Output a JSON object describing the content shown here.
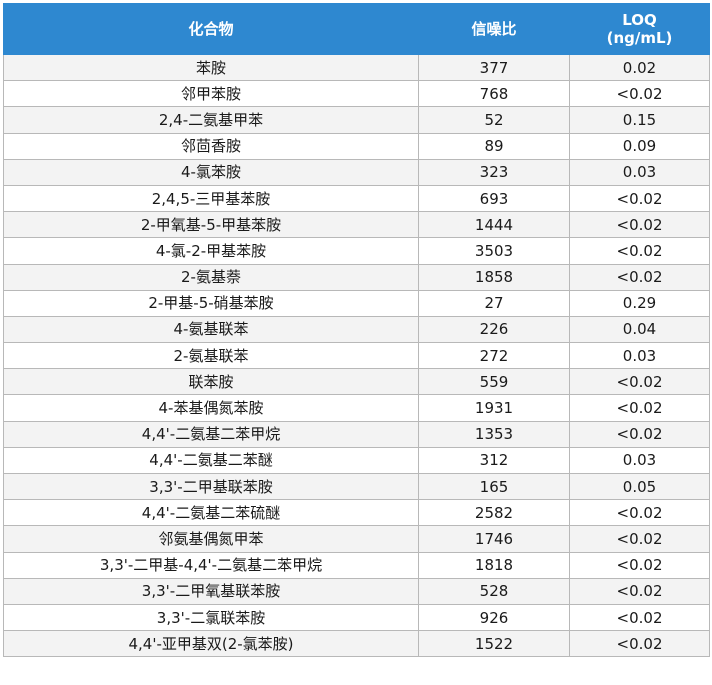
{
  "table": {
    "headers": {
      "compound": "化合物",
      "snr": "信噪比",
      "loq_line1": "LOQ",
      "loq_line2": "(ng/mL)"
    },
    "rows": [
      {
        "compound": "苯胺",
        "snr": "377",
        "loq": "0.02"
      },
      {
        "compound": "邻甲苯胺",
        "snr": "768",
        "loq": "<0.02"
      },
      {
        "compound": "2,4-二氨基甲苯",
        "snr": "52",
        "loq": "0.15"
      },
      {
        "compound": "邻茴香胺",
        "snr": "89",
        "loq": "0.09"
      },
      {
        "compound": "4-氯苯胺",
        "snr": "323",
        "loq": "0.03"
      },
      {
        "compound": "2,4,5-三甲基苯胺",
        "snr": "693",
        "loq": "<0.02"
      },
      {
        "compound": "2-甲氧基-5-甲基苯胺",
        "snr": "1444",
        "loq": "<0.02"
      },
      {
        "compound": "4-氯-2-甲基苯胺",
        "snr": "3503",
        "loq": "<0.02"
      },
      {
        "compound": "2-氨基萘",
        "snr": "1858",
        "loq": "<0.02"
      },
      {
        "compound": "2-甲基-5-硝基苯胺",
        "snr": "27",
        "loq": "0.29"
      },
      {
        "compound": "4-氨基联苯",
        "snr": "226",
        "loq": "0.04"
      },
      {
        "compound": "2-氨基联苯",
        "snr": "272",
        "loq": "0.03"
      },
      {
        "compound": "联苯胺",
        "snr": "559",
        "loq": "<0.02"
      },
      {
        "compound": "4-苯基偶氮苯胺",
        "snr": "1931",
        "loq": "<0.02"
      },
      {
        "compound": "4,4'-二氨基二苯甲烷",
        "snr": "1353",
        "loq": "<0.02"
      },
      {
        "compound": "4,4'-二氨基二苯醚",
        "snr": "312",
        "loq": "0.03"
      },
      {
        "compound": "3,3'-二甲基联苯胺",
        "snr": "165",
        "loq": "0.05"
      },
      {
        "compound": "4,4'-二氨基二苯硫醚",
        "snr": "2582",
        "loq": "<0.02"
      },
      {
        "compound": "邻氨基偶氮甲苯",
        "snr": "1746",
        "loq": "<0.02"
      },
      {
        "compound": "3,3'-二甲基-4,4'-二氨基二苯甲烷",
        "snr": "1818",
        "loq": "<0.02"
      },
      {
        "compound": "3,3'-二甲氧基联苯胺",
        "snr": "528",
        "loq": "<0.02"
      },
      {
        "compound": "3,3'-二氯联苯胺",
        "snr": "926",
        "loq": "<0.02"
      },
      {
        "compound": "4,4'-亚甲基双(2-氯苯胺)",
        "snr": "1522",
        "loq": "<0.02"
      }
    ]
  }
}
